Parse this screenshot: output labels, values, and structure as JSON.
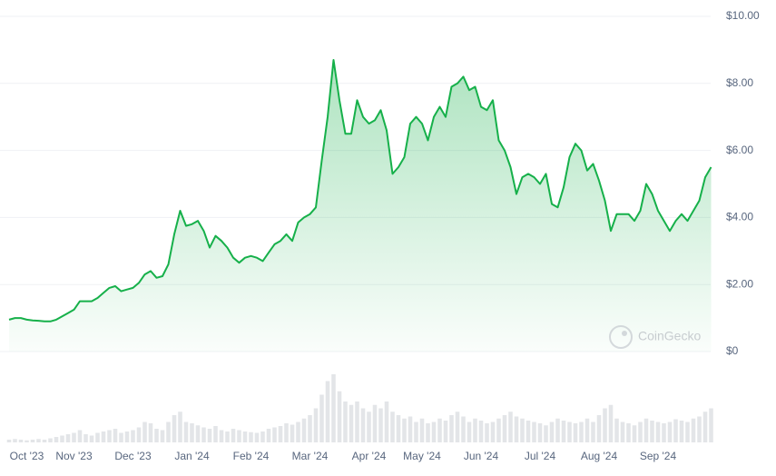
{
  "chart_data": {
    "type": "line",
    "categories": [
      null,
      null,
      null,
      "Oct '23",
      null,
      null,
      null,
      null,
      null,
      null,
      null,
      "Nov '23",
      null,
      null,
      null,
      null,
      null,
      null,
      null,
      null,
      null,
      "Dec '23",
      null,
      null,
      null,
      null,
      null,
      null,
      null,
      null,
      null,
      "Jan '24",
      null,
      null,
      null,
      null,
      null,
      null,
      null,
      null,
      null,
      "Feb '24",
      null,
      null,
      null,
      null,
      null,
      null,
      null,
      null,
      null,
      "Mar '24",
      null,
      null,
      null,
      null,
      null,
      null,
      null,
      null,
      null,
      "Apr '24",
      null,
      null,
      null,
      null,
      null,
      null,
      null,
      null,
      "May '24",
      null,
      null,
      null,
      null,
      null,
      null,
      null,
      null,
      null,
      "Jun '24",
      null,
      null,
      null,
      null,
      null,
      null,
      null,
      null,
      null,
      "Jul '24",
      null,
      null,
      null,
      null,
      null,
      null,
      null,
      null,
      null,
      "Aug '24",
      null,
      null,
      null,
      null,
      null,
      null,
      null,
      null,
      null,
      "Sep '24",
      null,
      null,
      null,
      null,
      null,
      null,
      null,
      null,
      null
    ],
    "values": [
      0.95,
      1.0,
      1.0,
      0.95,
      0.93,
      0.92,
      0.9,
      0.9,
      0.95,
      1.05,
      1.15,
      1.25,
      1.5,
      1.5,
      1.5,
      1.6,
      1.75,
      1.9,
      1.95,
      1.8,
      1.85,
      1.9,
      2.05,
      2.3,
      2.4,
      2.2,
      2.25,
      2.6,
      3.5,
      4.2,
      3.75,
      3.8,
      3.9,
      3.6,
      3.1,
      3.45,
      3.3,
      3.1,
      2.8,
      2.65,
      2.8,
      2.85,
      2.8,
      2.7,
      2.95,
      3.2,
      3.3,
      3.5,
      3.3,
      3.85,
      4.0,
      4.1,
      4.3,
      5.7,
      7.0,
      8.7,
      7.5,
      6.5,
      6.5,
      7.5,
      7.0,
      6.8,
      6.9,
      7.2,
      6.6,
      5.3,
      5.5,
      5.8,
      6.8,
      7.0,
      6.8,
      6.3,
      7.0,
      7.3,
      7.0,
      7.9,
      8.0,
      8.2,
      7.8,
      7.9,
      7.3,
      7.2,
      7.5,
      6.3,
      6.0,
      5.5,
      4.7,
      5.2,
      5.3,
      5.2,
      5.0,
      5.3,
      4.4,
      4.3,
      4.9,
      5.8,
      6.2,
      6.0,
      5.4,
      5.6,
      5.1,
      4.5,
      3.6,
      4.1,
      4.1,
      4.1,
      3.9,
      4.2,
      5.0,
      4.7,
      4.2,
      3.9,
      3.6,
      3.9,
      4.1,
      3.9,
      4.2,
      4.5,
      5.2,
      5.5
    ],
    "color": "#16b04a",
    "ylim": [
      0,
      10
    ],
    "yticks": [
      {
        "value": 0,
        "label": "$0"
      },
      {
        "value": 2,
        "label": "$2.00"
      },
      {
        "value": 4,
        "label": "$4.00"
      },
      {
        "value": 6,
        "label": "$6.00"
      },
      {
        "value": 8,
        "label": "$8.00"
      },
      {
        "value": 10,
        "label": "$10.00"
      }
    ],
    "grid": true,
    "watermark": "CoinGecko",
    "volume": {
      "color": "#e3e5e8",
      "values": [
        4,
        5,
        4,
        3,
        4,
        5,
        4,
        6,
        8,
        10,
        12,
        14,
        18,
        12,
        10,
        14,
        16,
        18,
        20,
        14,
        16,
        18,
        22,
        30,
        28,
        20,
        18,
        30,
        40,
        45,
        30,
        28,
        25,
        22,
        20,
        24,
        18,
        16,
        20,
        18,
        16,
        15,
        14,
        16,
        20,
        22,
        24,
        28,
        26,
        30,
        35,
        40,
        50,
        70,
        90,
        100,
        75,
        60,
        55,
        60,
        50,
        45,
        55,
        50,
        60,
        45,
        40,
        35,
        38,
        30,
        35,
        28,
        30,
        35,
        32,
        40,
        45,
        38,
        30,
        35,
        32,
        28,
        30,
        35,
        40,
        45,
        38,
        35,
        32,
        30,
        28,
        25,
        30,
        35,
        32,
        30,
        28,
        30,
        35,
        30,
        40,
        50,
        55,
        35,
        30,
        28,
        25,
        30,
        35,
        32,
        30,
        28,
        30,
        34,
        32,
        30,
        35,
        38,
        45,
        50
      ]
    }
  }
}
